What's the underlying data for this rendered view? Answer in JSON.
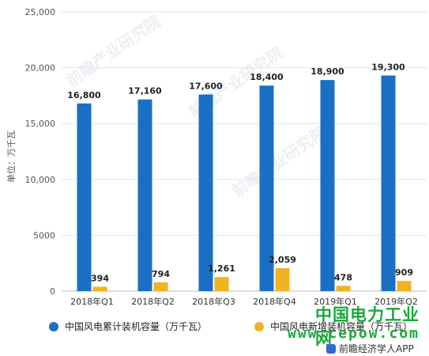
{
  "chart_data": {
    "type": "bar",
    "categories": [
      "2018年Q1",
      "2018年Q2",
      "2018年Q3",
      "2018年Q4",
      "2019年Q1",
      "2019年Q2"
    ],
    "series": [
      {
        "name": "中国风电累计装机容量（万千瓦）",
        "color": "#1a6fc4",
        "values": [
          16800,
          17160,
          17600,
          18400,
          18900,
          19300
        ],
        "labels": [
          "16,800",
          "17,160",
          "17,600",
          "18,400",
          "18,900",
          "19,300"
        ]
      },
      {
        "name": "中国风电新增装机容量（万千瓦）",
        "color": "#f0b323",
        "values": [
          394,
          794,
          1261,
          2059,
          478,
          909
        ],
        "labels": [
          "394",
          "794",
          "1,261",
          "2,059",
          "478",
          "909"
        ]
      }
    ],
    "ylabel": "单位：万千瓦",
    "ylim": [
      0,
      25000
    ],
    "yticks": [
      0,
      5000,
      10000,
      15000,
      20000,
      25000
    ],
    "ytick_labels": [
      "0",
      "5000",
      "10,000",
      "15,000",
      "20,000",
      "25,000"
    ],
    "grid": true,
    "legend_position": "bottom"
  },
  "watermarks": {
    "background": "前瞻产业研究院",
    "site_name": "中国电力工业网",
    "site_url": "www.cepow.com",
    "source": "前瞻经济学人APP"
  }
}
